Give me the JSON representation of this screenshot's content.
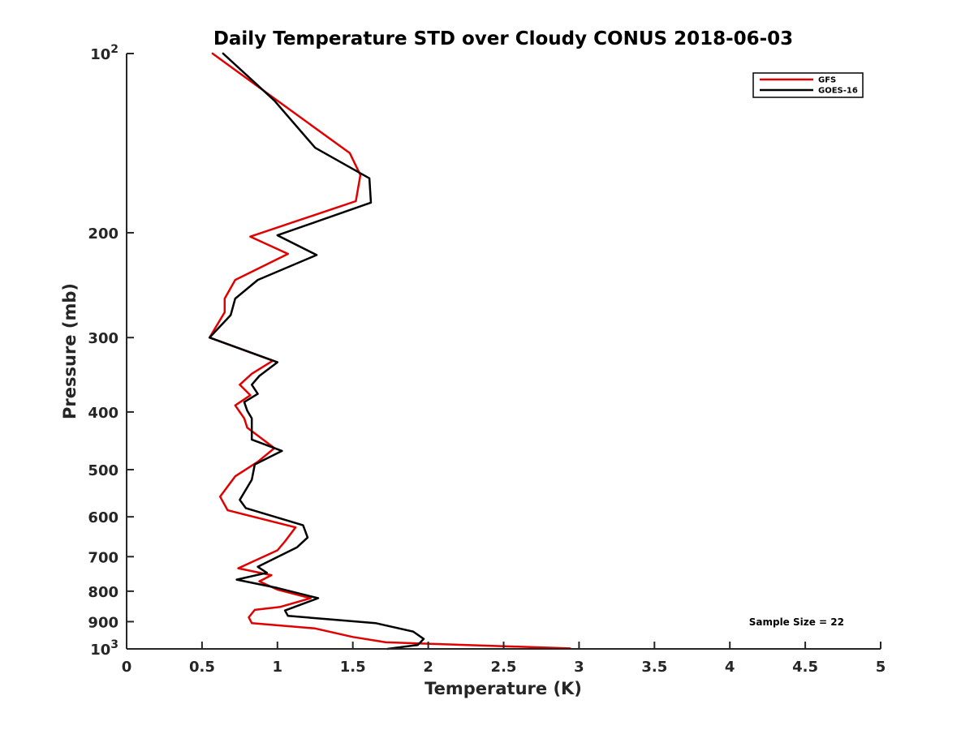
{
  "chart_data": {
    "type": "line",
    "title": "Daily Temperature STD over Cloudy CONUS 2018-06-03",
    "xlabel": "Temperature (K)",
    "ylabel": "Pressure (mb)",
    "xlim": [
      0,
      5
    ],
    "ylim": [
      100,
      1000
    ],
    "y_scale": "log",
    "y_reversed": true,
    "x_ticks": [
      0,
      0.5,
      1,
      1.5,
      2,
      2.5,
      3,
      3.5,
      4,
      4.5,
      5
    ],
    "x_tick_labels": [
      "0",
      "0.5",
      "1",
      "1.5",
      "2",
      "2.5",
      "3",
      "3.5",
      "4",
      "4.5",
      "5"
    ],
    "y_ticks": [
      100,
      200,
      300,
      400,
      500,
      600,
      700,
      800,
      900,
      1000
    ],
    "y_tick_labels": [
      {
        "base": "10",
        "exp": "2"
      },
      {
        "base": "200",
        "exp": ""
      },
      {
        "base": "300",
        "exp": ""
      },
      {
        "base": "400",
        "exp": ""
      },
      {
        "base": "500",
        "exp": ""
      },
      {
        "base": "600",
        "exp": ""
      },
      {
        "base": "700",
        "exp": ""
      },
      {
        "base": "800",
        "exp": ""
      },
      {
        "base": "900",
        "exp": ""
      },
      {
        "base": "10",
        "exp": "3"
      }
    ],
    "grid": false,
    "legend_position": "top-right",
    "series": [
      {
        "name": "GFS",
        "color": "#e00000",
        "points": [
          [
            0.57,
            100
          ],
          [
            1.0,
            120
          ],
          [
            1.48,
            147
          ],
          [
            1.55,
            160
          ],
          [
            1.52,
            177
          ],
          [
            0.82,
            203
          ],
          [
            1.07,
            217
          ],
          [
            0.72,
            240
          ],
          [
            0.65,
            258
          ],
          [
            0.65,
            272
          ],
          [
            0.55,
            300
          ],
          [
            0.97,
            328
          ],
          [
            0.83,
            345
          ],
          [
            0.75,
            360
          ],
          [
            0.82,
            375
          ],
          [
            0.72,
            390
          ],
          [
            0.78,
            410
          ],
          [
            0.8,
            425
          ],
          [
            0.98,
            460
          ],
          [
            0.87,
            485
          ],
          [
            0.72,
            513
          ],
          [
            0.62,
            555
          ],
          [
            0.67,
            585
          ],
          [
            1.12,
            625
          ],
          [
            1.05,
            660
          ],
          [
            1.0,
            683
          ],
          [
            0.74,
            732
          ],
          [
            0.96,
            752
          ],
          [
            0.88,
            770
          ],
          [
            1.0,
            795
          ],
          [
            1.22,
            822
          ],
          [
            1.02,
            850
          ],
          [
            0.85,
            860
          ],
          [
            0.81,
            885
          ],
          [
            0.83,
            905
          ],
          [
            1.25,
            924
          ],
          [
            1.5,
            955
          ],
          [
            1.72,
            975
          ],
          [
            2.94,
            998
          ]
        ]
      },
      {
        "name": "GOES-16",
        "color": "#000000",
        "points": [
          [
            0.64,
            100
          ],
          [
            0.98,
            120
          ],
          [
            1.25,
            144
          ],
          [
            1.61,
            162
          ],
          [
            1.62,
            178
          ],
          [
            1.0,
            202
          ],
          [
            1.26,
            218
          ],
          [
            0.87,
            240
          ],
          [
            0.72,
            258
          ],
          [
            0.69,
            275
          ],
          [
            0.55,
            300
          ],
          [
            1.0,
            330
          ],
          [
            0.88,
            348
          ],
          [
            0.83,
            360
          ],
          [
            0.87,
            373
          ],
          [
            0.78,
            385
          ],
          [
            0.8,
            398
          ],
          [
            0.83,
            410
          ],
          [
            0.83,
            445
          ],
          [
            1.03,
            465
          ],
          [
            0.85,
            490
          ],
          [
            0.83,
            520
          ],
          [
            0.75,
            562
          ],
          [
            0.79,
            580
          ],
          [
            1.17,
            620
          ],
          [
            1.2,
            650
          ],
          [
            1.13,
            675
          ],
          [
            0.87,
            728
          ],
          [
            0.93,
            745
          ],
          [
            0.73,
            765
          ],
          [
            1.0,
            790
          ],
          [
            1.27,
            822
          ],
          [
            1.18,
            838
          ],
          [
            1.05,
            862
          ],
          [
            1.07,
            880
          ],
          [
            1.65,
            905
          ],
          [
            1.9,
            935
          ],
          [
            1.97,
            962
          ],
          [
            1.93,
            985
          ],
          [
            1.73,
            1000
          ]
        ]
      }
    ],
    "annotations": [
      "Sample Size = 22"
    ]
  }
}
